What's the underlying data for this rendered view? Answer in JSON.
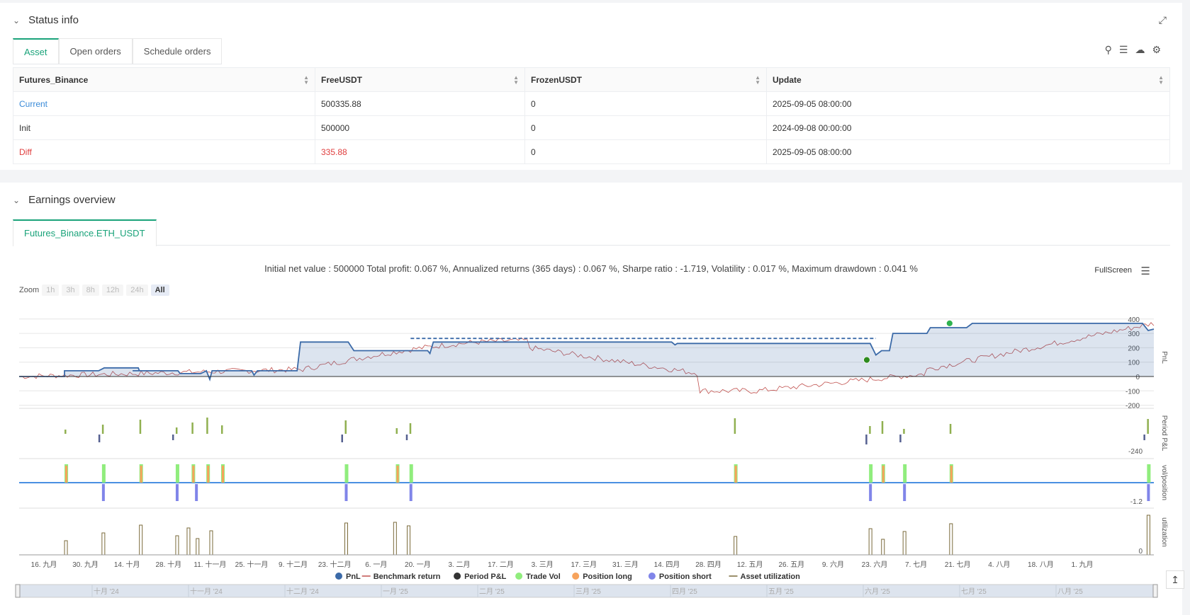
{
  "status": {
    "title": "Status info",
    "tabs": [
      "Asset",
      "Open orders",
      "Schedule orders"
    ],
    "columns": [
      "Futures_Binance",
      "FreeUSDT",
      "FrozenUSDT",
      "Update"
    ],
    "rows": [
      {
        "label": "Current",
        "free": "500335.88",
        "frozen": "0",
        "update": "2025-09-05 08:00:00"
      },
      {
        "label": "Init",
        "free": "500000",
        "frozen": "0",
        "update": "2024-09-08 00:00:00"
      },
      {
        "label": "Diff",
        "free": "335.88",
        "frozen": "0",
        "update": "2025-09-05 08:00:00"
      }
    ]
  },
  "earnings": {
    "title": "Earnings overview",
    "tab": "Futures_Binance.ETH_USDT",
    "summary": "Initial net value : 500000 Total profit: 0.067 %, Annualized returns (365 days) : 0.067 %, Sharpe ratio : -1.719, Volatility : 0.017 %, Maximum drawdown : 0.041 %",
    "fullscreen": "FullScreen",
    "zoom_label": "Zoom",
    "zoom_options": [
      "1h",
      "3h",
      "8h",
      "12h",
      "24h",
      "All"
    ]
  },
  "chart_data": {
    "type": "line",
    "pnl_axis": {
      "label": "PnL",
      "ticks": [
        400,
        300,
        200,
        100,
        0,
        -100,
        -200
      ]
    },
    "period_axis": {
      "label": "Period P&L",
      "tick": "-240"
    },
    "vol_axis": {
      "label": "vol/position",
      "tick": "-1.2"
    },
    "util_axis": {
      "label": "utilization",
      "tick": "0"
    },
    "x_ticks": [
      "16. 九月",
      "30. 九月",
      "14. 十月",
      "28. 十月",
      "11. 十一月",
      "25. 十一月",
      "9. 十二月",
      "23. 十二月",
      "6. 一月",
      "20. 一月",
      "3. 二月",
      "17. 二月",
      "3. 三月",
      "17. 三月",
      "31. 三月",
      "14. 四月",
      "28. 四月",
      "12. 五月",
      "26. 五月",
      "9. 六月",
      "23. 六月",
      "7. 七月",
      "21. 七月",
      "4. 八月",
      "18. 八月",
      "1. 九月"
    ],
    "navigator_ticks": [
      "十月 '24",
      "十一月 '24",
      "十二月 '24",
      "一月 '25",
      "二月 '25",
      "三月 '25",
      "四月 '25",
      "五月 '25",
      "六月 '25",
      "七月 '25",
      "八月 '25"
    ],
    "legend": [
      "PnL",
      "Benchmark return",
      "Period P&L",
      "Trade Vol",
      "Position long",
      "Position short",
      "Asset utilization"
    ],
    "colors": {
      "pnl": "#3b6aa8",
      "benchmark": "#c0504d",
      "period": "#333333",
      "trade_vol": "#90ed7d",
      "long": "#f7a35c",
      "short": "#8085e9",
      "util": "#7a6a3a"
    },
    "pnl_steps": [
      [
        0,
        0
      ],
      [
        0.04,
        0
      ],
      [
        0.04,
        40
      ],
      [
        0.07,
        40
      ],
      [
        0.075,
        60
      ],
      [
        0.105,
        60
      ],
      [
        0.106,
        40
      ],
      [
        0.1,
        40
      ],
      [
        0.14,
        40
      ],
      [
        0.142,
        20
      ],
      [
        0.16,
        20
      ],
      [
        0.165,
        40
      ],
      [
        0.168,
        -20
      ],
      [
        0.17,
        40
      ],
      [
        0.205,
        40
      ],
      [
        0.207,
        10
      ],
      [
        0.21,
        40
      ],
      [
        0.245,
        40
      ],
      [
        0.248,
        240
      ],
      [
        0.29,
        240
      ],
      [
        0.29,
        240
      ],
      [
        0.295,
        180
      ],
      [
        0.33,
        180
      ],
      [
        0.335,
        180
      ],
      [
        0.36,
        180
      ],
      [
        0.362,
        160
      ],
      [
        0.365,
        240
      ],
      [
        0.43,
        240
      ],
      [
        0.575,
        240
      ],
      [
        0.578,
        220
      ],
      [
        0.58,
        230
      ],
      [
        0.75,
        230
      ],
      [
        0.755,
        150
      ],
      [
        0.76,
        180
      ],
      [
        0.765,
        180
      ],
      [
        0.767,
        180
      ],
      [
        0.77,
        300
      ],
      [
        0.8,
        300
      ],
      [
        0.803,
        340
      ],
      [
        0.83,
        340
      ],
      [
        0.835,
        340
      ],
      [
        0.84,
        370
      ],
      [
        0.99,
        370
      ],
      [
        0.995,
        320
      ],
      [
        1,
        330
      ]
    ],
    "pnl_dashed_from": 0.345,
    "pnl_dashed_to": 0.755,
    "pnl_dashed_value": 265,
    "markers": [
      {
        "x": 0.82,
        "y": 370,
        "color": "#2fb350"
      },
      {
        "x": 0.747,
        "y": 115,
        "color": "#2e8b1e"
      }
    ],
    "trade_positions": [
      0.04,
      0.073,
      0.106,
      0.138,
      0.152,
      0.165,
      0.178,
      0.287,
      0.332,
      0.344,
      0.63,
      0.749,
      0.76,
      0.779,
      0.82,
      0.994
    ],
    "short_positions": [
      0.073,
      0.138,
      0.155,
      0.287,
      0.344,
      0.749,
      0.779,
      0.994
    ],
    "util_positions": [
      0.04,
      0.073,
      0.106,
      0.138,
      0.148,
      0.156,
      0.168,
      0.287,
      0.33,
      0.342,
      0.63,
      0.749,
      0.76,
      0.779,
      0.82,
      0.994
    ]
  }
}
